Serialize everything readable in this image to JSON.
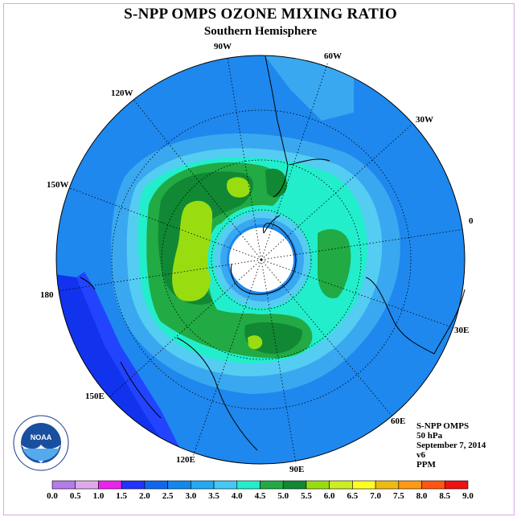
{
  "title": "S-NPP OMPS OZONE MIXING RATIO",
  "subtitle": "Southern Hemisphere",
  "longitude_labels": [
    "90W",
    "60W",
    "30W",
    "0",
    "30E",
    "60E",
    "90E",
    "120E",
    "150E",
    "180",
    "150W",
    "120W"
  ],
  "info": {
    "instrument": "S-NPP OMPS",
    "level": "50 hPa",
    "date": "September 7, 2014",
    "version": "v6",
    "units": "PPM"
  },
  "logo_text": "NOAA",
  "logo_ring_text": "NATIONAL OCEANIC AND ATMOSPHERIC ADMINISTRATION · U.S. DEPARTMENT OF COMMERCE",
  "colorbar": {
    "ticks": [
      "0.0",
      "0.5",
      "1.0",
      "1.5",
      "2.0",
      "2.5",
      "3.0",
      "3.5",
      "4.0",
      "4.5",
      "5.0",
      "5.5",
      "6.0",
      "6.5",
      "7.0",
      "7.5",
      "8.0",
      "8.5",
      "9.0"
    ],
    "colors": [
      "#b57be8",
      "#e0a8ec",
      "#ee22ee",
      "#2233ff",
      "#1166ee",
      "#1188ee",
      "#22aaf4",
      "#44c8f4",
      "#22eecc",
      "#22aa44",
      "#118833",
      "#99dd11",
      "#ccee22",
      "#ffff22",
      "#eebb11",
      "#ff9911",
      "#ff5511",
      "#ee1111",
      "#8b5a3a"
    ]
  },
  "colors": {
    "background_field": "#1e88ee",
    "ocean_light": "#3aa8f0",
    "hole": "#ffffff"
  }
}
